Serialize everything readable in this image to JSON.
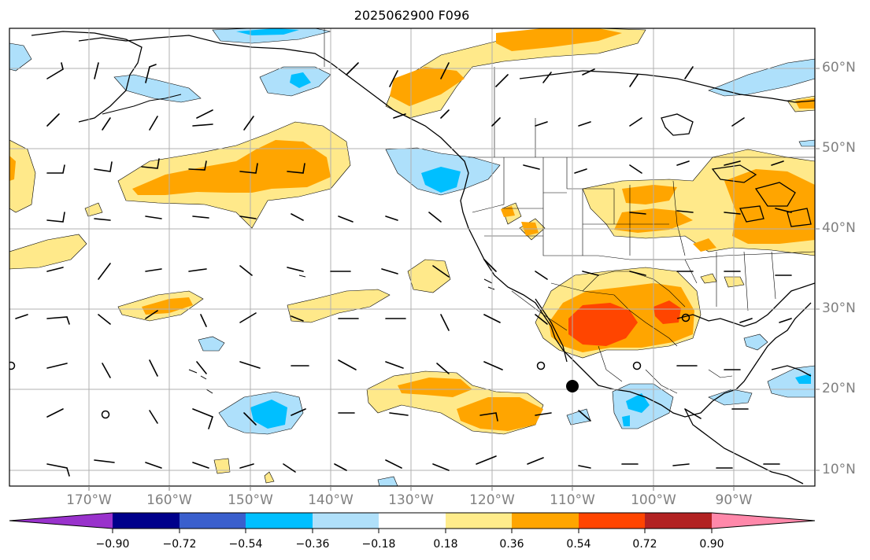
{
  "title": "2025062900 F096",
  "map": {
    "lon_labels": [
      "170°W",
      "160°W",
      "150°W",
      "140°W",
      "130°W",
      "120°W",
      "110°W",
      "100°W",
      "90°W"
    ],
    "lat_labels": [
      "60°N",
      "50°N",
      "40°N",
      "30°N",
      "20°N",
      "10°N"
    ],
    "extent": {
      "lon": [
        -180,
        -80
      ],
      "lat": [
        8,
        65
      ]
    },
    "gridlines": true
  },
  "colorbar": {
    "tick_labels": [
      "−0.90",
      "−0.72",
      "−0.54",
      "−0.36",
      "−0.18",
      "0.18",
      "0.36",
      "0.54",
      "0.72",
      "0.90"
    ],
    "colors": [
      "#9932cc",
      "#00008b",
      "#3a5fcd",
      "#00bfff",
      "#b0e0fa",
      "#ffffff",
      "#ffec8b",
      "#ffa500",
      "#ff4500",
      "#b22222",
      "#ff88aa"
    ]
  },
  "fill_colors": {
    "light_yellow": "#ffe98a",
    "orange": "#ffa500",
    "red_orange": "#ff4500",
    "light_blue": "#aee0fb",
    "blue": "#00bfff"
  },
  "markers": [
    "hurricane-center-dot"
  ]
}
